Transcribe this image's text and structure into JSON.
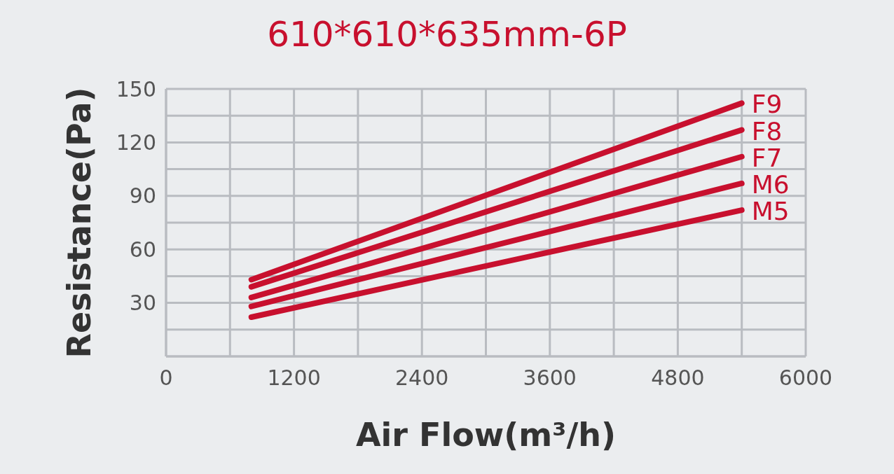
{
  "chart_data": {
    "type": "line",
    "title": "610*610*635mm-6P",
    "xlabel": "Air Flow(m³/h)",
    "ylabel": "Resistance(Pa)",
    "x": [
      800,
      5400
    ],
    "series": [
      {
        "name": "F9",
        "color": "#c8102e",
        "values": [
          43,
          142
        ]
      },
      {
        "name": "F8",
        "color": "#c8102e",
        "values": [
          39,
          127
        ]
      },
      {
        "name": "F7",
        "color": "#c8102e",
        "values": [
          33,
          112
        ]
      },
      {
        "name": "M6",
        "color": "#c8102e",
        "values": [
          28,
          97
        ]
      },
      {
        "name": "M5",
        "color": "#c8102e",
        "values": [
          22,
          82
        ]
      }
    ],
    "xlim": [
      0,
      6000
    ],
    "xticks": [
      0,
      {
        "value": 600,
        "label": null
      },
      1200,
      {
        "value": 1800,
        "label": null
      },
      2400,
      {
        "value": 3000,
        "label": null
      },
      3600,
      {
        "value": 4200,
        "label": null
      },
      4800,
      {
        "value": 5400,
        "label": null
      },
      6000
    ],
    "ylim": [
      0,
      150
    ],
    "yticks": [
      {
        "value": 0,
        "label": null
      },
      {
        "value": 15,
        "label": null
      },
      30,
      {
        "value": 45,
        "label": null
      },
      60,
      {
        "value": 75,
        "label": null
      },
      90,
      {
        "value": 105,
        "label": null
      },
      120,
      {
        "value": 135,
        "label": null
      },
      150
    ],
    "grid": true
  }
}
